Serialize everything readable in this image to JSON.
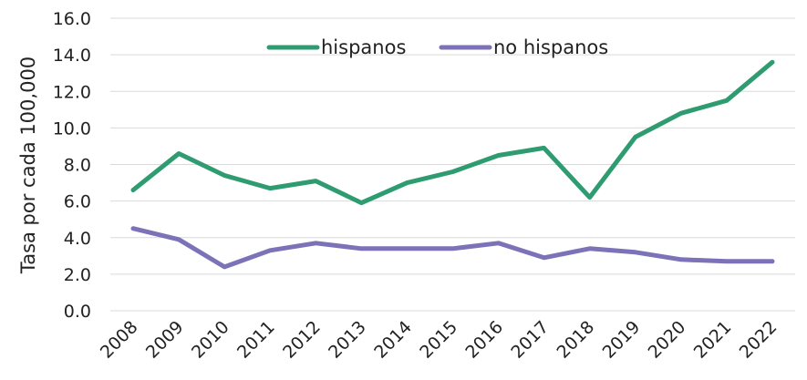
{
  "chart_data": {
    "type": "line",
    "title": "",
    "xlabel": "",
    "ylabel": "Tasa por cada 100,000",
    "ylim": [
      0,
      16
    ],
    "yticks": [
      "0.0",
      "2.0",
      "4.0",
      "6.0",
      "8.0",
      "10.0",
      "12.0",
      "14.0",
      "16.0"
    ],
    "grid": true,
    "legend_position": "top-center",
    "categories": [
      "2008",
      "2009",
      "2010",
      "2011",
      "2012",
      "2013",
      "2014",
      "2015",
      "2016",
      "2017",
      "2018",
      "2019",
      "2020",
      "2021",
      "2022"
    ],
    "series": [
      {
        "name": "hispanos",
        "color": "#2e9c70",
        "values": [
          6.6,
          8.6,
          7.4,
          6.7,
          7.1,
          5.9,
          7.0,
          7.6,
          8.5,
          8.9,
          6.2,
          9.5,
          10.8,
          11.5,
          13.6
        ]
      },
      {
        "name": "no hispanos",
        "color": "#7b72b8",
        "values": [
          4.5,
          3.9,
          2.4,
          3.3,
          3.7,
          3.4,
          3.4,
          3.4,
          3.7,
          2.9,
          3.4,
          3.2,
          2.8,
          2.7,
          2.7
        ]
      }
    ]
  }
}
